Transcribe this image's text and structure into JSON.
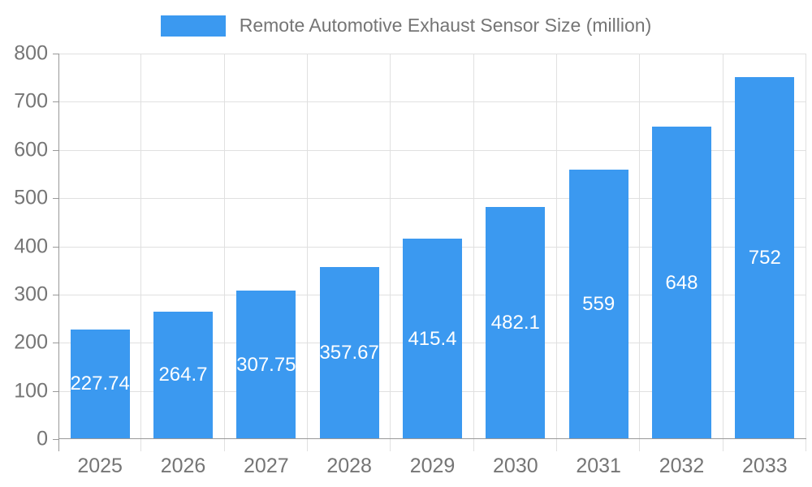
{
  "chart_data": {
    "type": "bar",
    "title": "Remote Automotive Exhaust Sensor Size (million)",
    "legend": [
      "Remote Automotive Exhaust Sensor Size (million)"
    ],
    "legend_position": "top",
    "categories": [
      "2025",
      "2026",
      "2027",
      "2028",
      "2029",
      "2030",
      "2031",
      "2032",
      "2033"
    ],
    "values": [
      227.74,
      264.7,
      307.75,
      357.67,
      415.4,
      482.1,
      559,
      648,
      752
    ],
    "value_labels": [
      "227.74",
      "264.7",
      "307.75",
      "357.67",
      "415.4",
      "482.1",
      "559",
      "648",
      "752"
    ],
    "xlabel": "",
    "ylabel": "",
    "ylim": [
      0,
      800
    ],
    "yticks": [
      0,
      100,
      200,
      300,
      400,
      500,
      600,
      700,
      800
    ],
    "grid": true,
    "colors": {
      "bar": "#3b99f0",
      "axis_text": "#757575",
      "grid_line": "#e0e0e0",
      "axis_line": "#999999",
      "value_label_text": "#ffffff",
      "background": "#ffffff"
    }
  }
}
